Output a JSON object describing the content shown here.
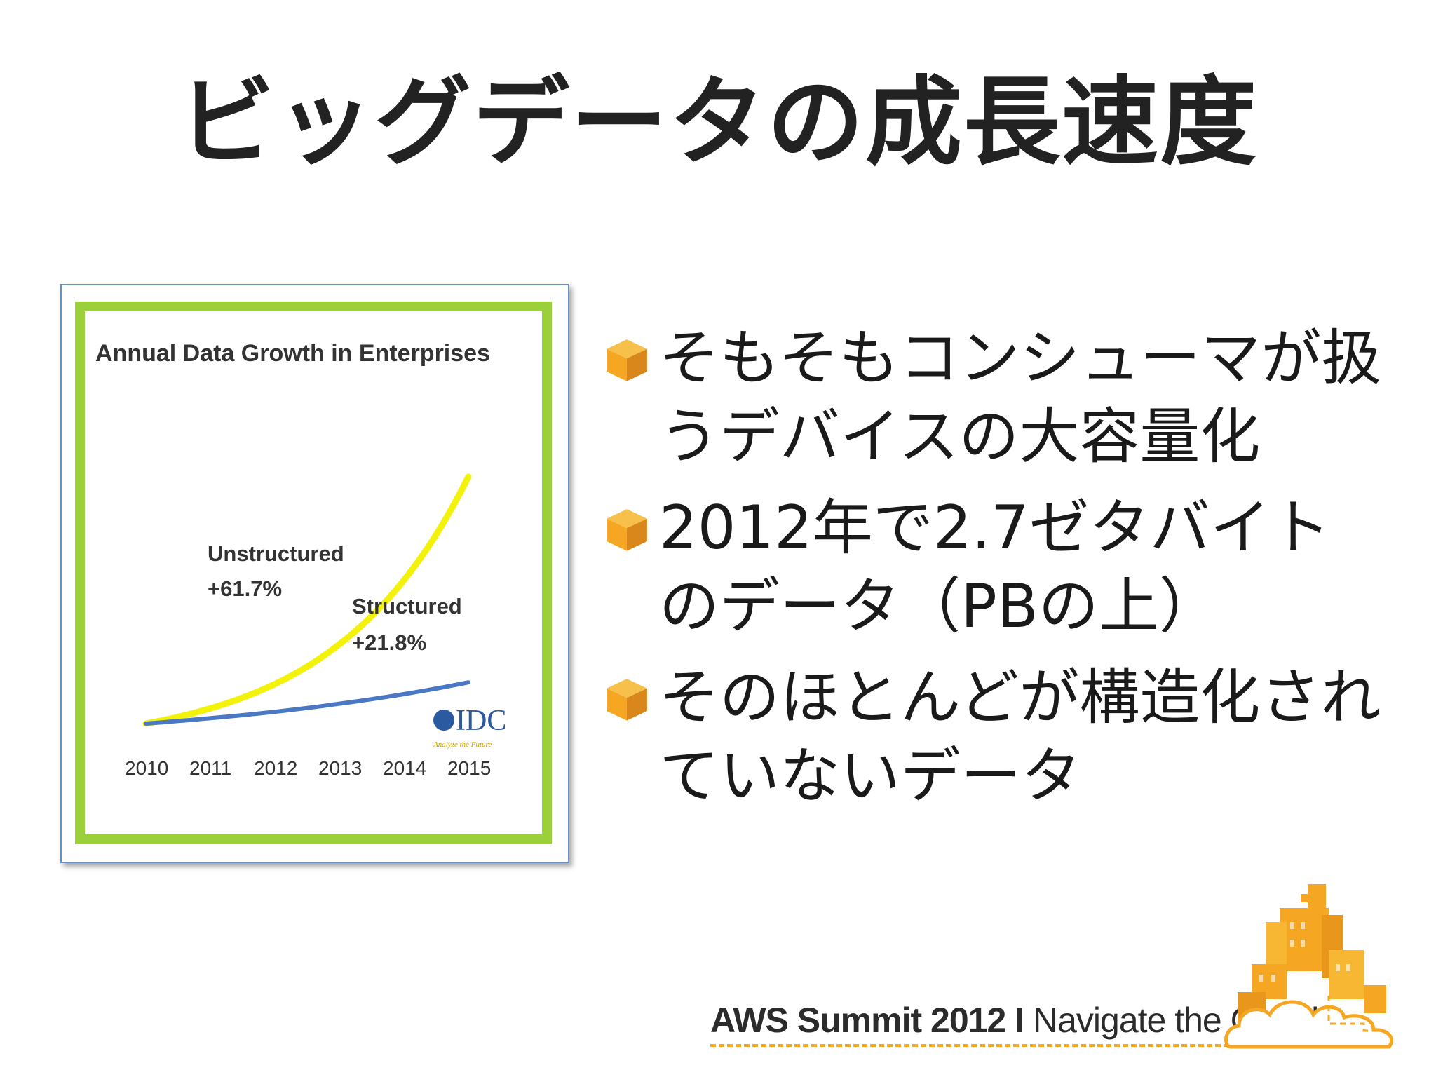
{
  "slide": {
    "title": "ビッグデータの成長速度"
  },
  "figure": {
    "title": "Annual Data Growth in Enterprises",
    "unstructured_label": "Unstructured",
    "unstructured_value": "+61.7%",
    "structured_label": "Structured",
    "structured_value": "+21.8%",
    "source_logo": "IDC",
    "source_tagline": "Analyze the Future",
    "chart_data": {
      "type": "line",
      "title": "Annual Data Growth in Enterprises",
      "xlabel": "",
      "ylabel": "",
      "x": [
        "2010",
        "2011",
        "2012",
        "2013",
        "2014",
        "2015"
      ],
      "series": [
        {
          "name": "Unstructured",
          "values": [
            1.0,
            1.62,
            2.61,
            4.23,
            6.84,
            11.06
          ],
          "color": "#f2f20a"
        },
        {
          "name": "Structured",
          "values": [
            1.0,
            1.22,
            1.48,
            1.81,
            2.2,
            2.68
          ],
          "color": "#4a78c4"
        }
      ],
      "ylim": [
        0,
        12
      ],
      "grid": false,
      "legend": "inline labels"
    }
  },
  "bullets": [
    {
      "text": "そもそもコンシューマが扱うデバイスの大容量化",
      "icon": "orange-cube-icon"
    },
    {
      "text": "2012年で2.7ゼタバイトのデータ（PBの上）",
      "icon": "orange-cube-icon"
    },
    {
      "text": "そのほとんどが構造化されていないデータ",
      "icon": "orange-cube-icon"
    }
  ],
  "footer": {
    "brand": "AWS Summit 2012",
    "separator": "I",
    "tagline": "Navigate the Cloud"
  },
  "colors": {
    "accent_orange": "#f5a623",
    "frame_green": "#9bd03a",
    "frame_border": "#6b8fc0"
  }
}
